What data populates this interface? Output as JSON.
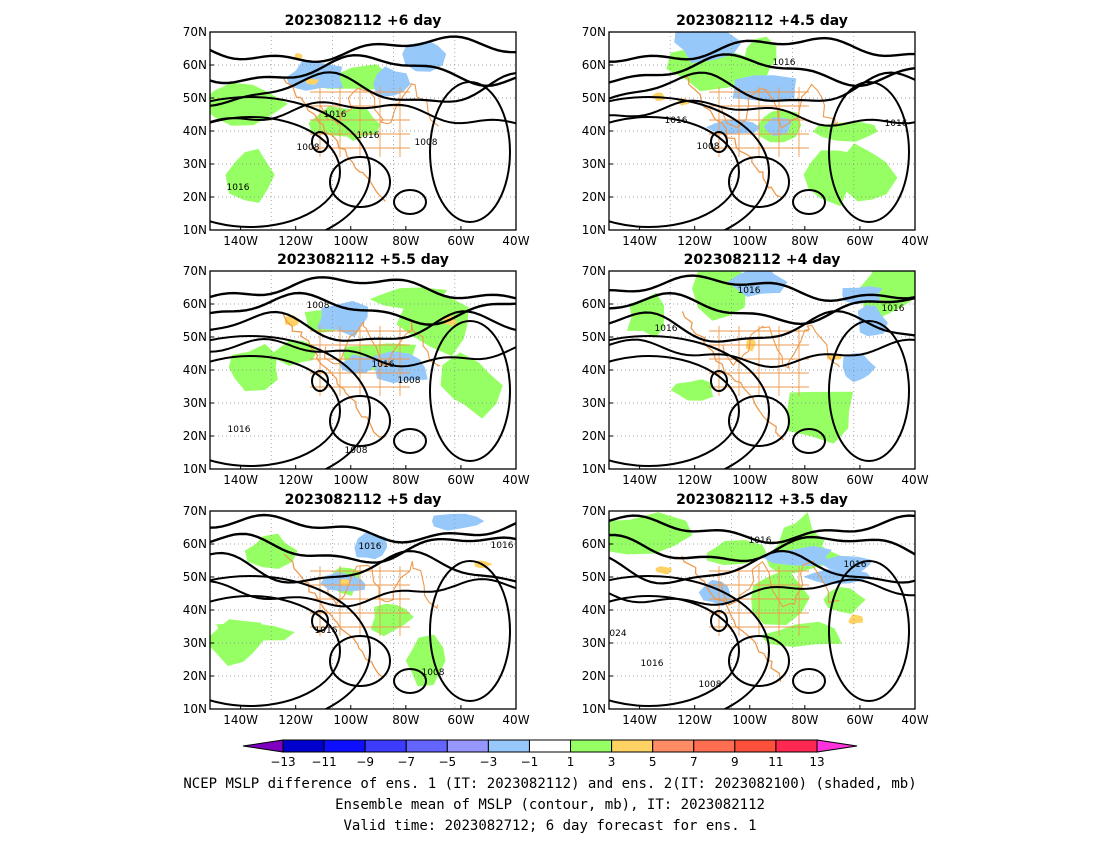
{
  "panels": [
    {
      "title": "2023082112  +6 day",
      "contour_labels": [
        "1016",
        "1016",
        "1008",
        "1008",
        "1016"
      ]
    },
    {
      "title": "2023082112  +4.5 day",
      "contour_labels": [
        "1016",
        "1016",
        "1008",
        "1016"
      ]
    },
    {
      "title": "2023082112  +5.5 day",
      "contour_labels": [
        "1008",
        "1016",
        "1008",
        "1016",
        "1008"
      ]
    },
    {
      "title": "2023082112  +4 day",
      "contour_labels": [
        "1016",
        "1016",
        "1016"
      ]
    },
    {
      "title": "2023082112  +5 day",
      "contour_labels": [
        "1016",
        "1016",
        "1016",
        "1008"
      ]
    },
    {
      "title": "2023082112  +3.5 day",
      "contour_labels": [
        "1016",
        "1016",
        "024",
        "1016",
        "1008"
      ]
    }
  ],
  "lat_labels": [
    "70N",
    "60N",
    "50N",
    "40N",
    "30N",
    "20N",
    "10N"
  ],
  "lon_labels": [
    "140W",
    "120W",
    "100W",
    "80W",
    "60W",
    "40W"
  ],
  "colorbar": {
    "ticks": [
      "−13",
      "−11",
      "−9",
      "−7",
      "−5",
      "−3",
      "−1",
      "1",
      "3",
      "5",
      "7",
      "9",
      "11",
      "13"
    ],
    "colors": [
      "#7f00bf",
      "#0000cd",
      "#0f0fff",
      "#3c3cff",
      "#6464ff",
      "#9696ff",
      "#96c8fa",
      "#ffffff",
      "#96ff64",
      "#ffd264",
      "#ff8c64",
      "#ff6e50",
      "#ff503c",
      "#ff2850",
      "#ff32dc"
    ]
  },
  "caption": {
    "line1": "NCEP MSLP difference of ens. 1 (IT: 2023082112) and ens. 2(IT: 2023082100) (shaded, mb)",
    "line2": "Ensemble mean of MSLP (contour, mb), IT: 2023082112",
    "line3": "Valid time: 2023082712; 6 day forecast for ens. 1"
  }
}
